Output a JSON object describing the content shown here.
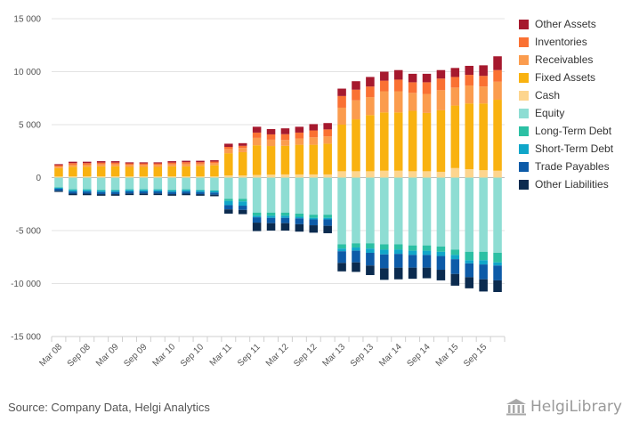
{
  "source_text": "Source: Company Data, Helgi Analytics",
  "logo_text": "HelgiLibrary",
  "chart_data": {
    "type": "bar",
    "stacked": true,
    "categories": [
      "Mar 08",
      "Jun 08",
      "Sep 08",
      "Dec 08",
      "Mar 09",
      "Jun 09",
      "Sep 09",
      "Dec 09",
      "Mar 10",
      "Jun 10",
      "Sep 10",
      "Dec 10",
      "Mar 11",
      "Jun 11",
      "Sep 11",
      "Dec 11",
      "Mar 12",
      "Jun 12",
      "Sep 12",
      "Dec 12",
      "Mar 13",
      "Jun 13",
      "Sep 13",
      "Dec 13",
      "Mar 14",
      "Jun 14",
      "Sep 14",
      "Dec 14",
      "Mar 15",
      "Jun 15",
      "Sep 15",
      "Dec 15"
    ],
    "tick_labels": [
      "Mar 08",
      "Sep 08",
      "Mar 09",
      "Sep 09",
      "Mar 10",
      "Sep 10",
      "Mar 11",
      "Sep 11",
      "Mar 12",
      "Sep 12",
      "Mar 13",
      "Sep 13",
      "Mar 14",
      "Sep 14",
      "Mar 15",
      "Sep 15"
    ],
    "y_ticks": [
      15000,
      10000,
      5000,
      0,
      -5000,
      -10000,
      -15000
    ],
    "y_tick_labels": [
      "15 000",
      "10 000",
      "5 000",
      "0",
      "-5 000",
      "-10 000",
      "-15 000"
    ],
    "ylim": [
      -15000,
      15000
    ],
    "grid": true,
    "legend_position": "right",
    "asset_series": [
      {
        "name": "Cash",
        "color": "#FDD58E",
        "values": [
          100,
          120,
          120,
          120,
          120,
          110,
          110,
          110,
          120,
          110,
          110,
          110,
          200,
          200,
          250,
          280,
          300,
          300,
          300,
          300,
          600,
          600,
          600,
          650,
          650,
          600,
          600,
          550,
          900,
          800,
          700,
          650
        ]
      },
      {
        "name": "Fixed Assets",
        "color": "#F9B210",
        "values": [
          800,
          900,
          900,
          950,
          950,
          900,
          900,
          900,
          950,
          950,
          1000,
          1050,
          2100,
          2200,
          2800,
          2700,
          2700,
          2800,
          2800,
          2900,
          4400,
          4900,
          5300,
          5500,
          5500,
          5700,
          5500,
          5800,
          5900,
          6200,
          6300,
          6700
        ]
      },
      {
        "name": "Receivables",
        "color": "#FB9C4E",
        "values": [
          150,
          200,
          200,
          200,
          200,
          200,
          200,
          200,
          200,
          250,
          200,
          200,
          400,
          400,
          700,
          600,
          550,
          600,
          700,
          700,
          1600,
          1800,
          1700,
          2000,
          2000,
          1700,
          1800,
          1900,
          1700,
          1700,
          1600,
          1700
        ]
      },
      {
        "name": "Inventories",
        "color": "#FA7133",
        "values": [
          120,
          150,
          150,
          150,
          150,
          130,
          130,
          130,
          150,
          150,
          150,
          150,
          200,
          200,
          500,
          500,
          550,
          550,
          650,
          650,
          1100,
          1000,
          1000,
          1000,
          1100,
          1000,
          1100,
          1100,
          1000,
          1000,
          1000,
          1100
        ]
      },
      {
        "name": "Other Assets",
        "color": "#A6192E",
        "values": [
          100,
          130,
          130,
          130,
          130,
          100,
          100,
          100,
          130,
          130,
          130,
          130,
          300,
          250,
          550,
          500,
          550,
          550,
          600,
          600,
          700,
          800,
          900,
          850,
          900,
          800,
          800,
          800,
          850,
          850,
          1000,
          1300
        ]
      }
    ],
    "liability_series": [
      {
        "name": "Equity",
        "color": "#8EDDD3",
        "values": [
          -900,
          -1100,
          -1100,
          -1150,
          -1150,
          -1100,
          -1100,
          -1100,
          -1150,
          -1100,
          -1150,
          -1200,
          -2000,
          -2000,
          -3300,
          -3300,
          -3300,
          -3400,
          -3500,
          -3500,
          -6300,
          -6200,
          -6200,
          -6300,
          -6300,
          -6400,
          -6400,
          -6500,
          -6800,
          -7000,
          -7000,
          -7100
        ]
      },
      {
        "name": "Long-Term Debt",
        "color": "#2CC0A4",
        "values": [
          -50,
          -60,
          -60,
          -60,
          -60,
          -50,
          -50,
          -50,
          -60,
          -60,
          -60,
          -60,
          -200,
          -250,
          -300,
          -300,
          -300,
          -300,
          -300,
          -300,
          -400,
          -400,
          -500,
          -500,
          -500,
          -500,
          -500,
          -500,
          -500,
          -800,
          -800,
          -900
        ]
      },
      {
        "name": "Short-Term Debt",
        "color": "#10A6C9",
        "values": [
          -100,
          -150,
          -150,
          -150,
          -150,
          -150,
          -150,
          -150,
          -150,
          -150,
          -150,
          -150,
          -400,
          -400,
          -150,
          -200,
          -200,
          -150,
          -150,
          -150,
          -250,
          -300,
          -400,
          -450,
          -400,
          -400,
          -400,
          -400,
          -400,
          -300,
          -400,
          -300
        ]
      },
      {
        "name": "Trade Payables",
        "color": "#0D5BA8",
        "values": [
          -200,
          -200,
          -200,
          -200,
          -200,
          -200,
          -200,
          -200,
          -200,
          -200,
          -200,
          -200,
          -400,
          -400,
          -500,
          -500,
          -500,
          -550,
          -550,
          -600,
          -1100,
          -1100,
          -1200,
          -1300,
          -1300,
          -1200,
          -1200,
          -1300,
          -1400,
          -1300,
          -1400,
          -1400
        ]
      },
      {
        "name": "Other Liabilities",
        "color": "#0B2B4F",
        "values": [
          -100,
          -150,
          -150,
          -150,
          -150,
          -150,
          -150,
          -150,
          -150,
          -150,
          -150,
          -150,
          -400,
          -400,
          -800,
          -700,
          -700,
          -700,
          -700,
          -700,
          -800,
          -900,
          -900,
          -1100,
          -1100,
          -1050,
          -1000,
          -1000,
          -1100,
          -1050,
          -1150,
          -1100
        ]
      }
    ],
    "legend": [
      {
        "name": "Other Assets",
        "color": "#A6192E"
      },
      {
        "name": "Inventories",
        "color": "#FA7133"
      },
      {
        "name": "Receivables",
        "color": "#FB9C4E"
      },
      {
        "name": "Fixed Assets",
        "color": "#F9B210"
      },
      {
        "name": "Cash",
        "color": "#FDD58E"
      },
      {
        "name": "Equity",
        "color": "#8EDDD3"
      },
      {
        "name": "Long-Term Debt",
        "color": "#2CC0A4"
      },
      {
        "name": "Short-Term Debt",
        "color": "#10A6C9"
      },
      {
        "name": "Trade Payables",
        "color": "#0D5BA8"
      },
      {
        "name": "Other Liabilities",
        "color": "#0B2B4F"
      }
    ]
  }
}
